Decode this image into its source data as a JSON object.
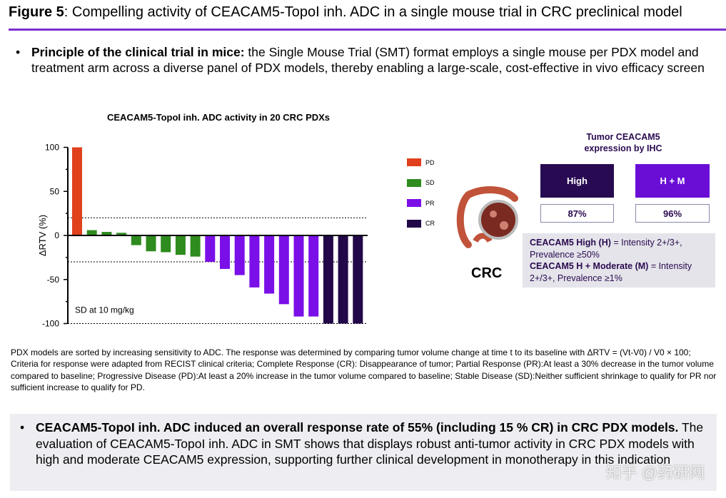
{
  "header": {
    "figure_label": "Figure 5",
    "title": ": Compelling activity of CEACAM5-TopoI inh. ADC in a single mouse trial in CRC preclinical model"
  },
  "bullet1": {
    "bold": "Principle of the clinical trial in mice:",
    "text": " the Single Mouse Trial (SMT) format employs a single mouse per PDX model and treatment arm across a diverse panel of PDX models, thereby enabling a large-scale, cost-effective in vivo efficacy screen"
  },
  "chart_data": {
    "type": "bar",
    "title": "CEACAM5-TopoI inh. ADC activity in 20 CRC PDXs",
    "ylabel": "ΔRTV (%)",
    "ylim": [
      -100,
      100
    ],
    "yticks": [
      100,
      50,
      0,
      -50,
      -100
    ],
    "reference_lines": [
      20,
      -30,
      -100
    ],
    "annotation": "SD at 10 mg/kg",
    "values": [
      100,
      6,
      4,
      3,
      -11,
      -18,
      -19,
      -22,
      -24,
      -30,
      -38,
      -45,
      -59,
      -66,
      -78,
      -92,
      -92,
      -100,
      -100,
      -100
    ],
    "response": [
      "PD",
      "SD",
      "SD",
      "SD",
      "SD",
      "SD",
      "SD",
      "SD",
      "SD",
      "PR",
      "PR",
      "PR",
      "PR",
      "PR",
      "PR",
      "PR",
      "PR",
      "CR",
      "CR",
      "CR"
    ],
    "legend": [
      {
        "label": "PD",
        "color": "#e0401c"
      },
      {
        "label": "SD",
        "color": "#2e8b1e"
      },
      {
        "label": "PR",
        "color": "#7a0fe8"
      },
      {
        "label": "CR",
        "color": "#220848"
      }
    ],
    "legend_placement": "right"
  },
  "right": {
    "crc_label": "CRC",
    "ihc_title": "Tumor CEACAM5 expression by IHC",
    "high_label": "High",
    "hm_label": "H + M",
    "high_pct": "87%",
    "hm_pct": "96%",
    "def1_bold": "CEACAM5 High (H)",
    "def1_text": " = Intensity 2+/3+, Prevalence ≥50%",
    "def2_bold": "CEACAM5 H + Moderate (M)",
    "def2_text": " = Intensity 2+/3+, Prevalence ≥1%"
  },
  "footnote": "PDX models are sorted by increasing sensitivity to ADC. The response was determined by comparing tumor volume change at time t to its baseline with ΔRTV = (Vt-V0) / V0 × 100; Criteria for response were adapted from RECIST clinical criteria; Complete Response (CR): Disappearance of tumor; Partial Response (PR):At least a 30% decrease in the tumor volume compared to baseline; Progressive Disease (PD):At least a 20% increase in the tumor volume compared to baseline; Stable Disease (SD):Neither sufficient shrinkage to qualify for PR nor sufficient increase to qualify for PD.",
  "bullet2": {
    "bold": "CEACAM5-TopoI inh. ADC induced an overall response rate of 55% (including 15 % CR) in CRC PDX models.",
    "text": " The evaluation of CEACAM5-TopoI inh. ADC in SMT shows that displays robust anti-tumor activity in CRC PDX models with high and moderate CEACAM5 expression, supporting further clinical development in monotherapy in this indication"
  },
  "watermark": "知乎 @药研网",
  "bullet_glyph": "•"
}
